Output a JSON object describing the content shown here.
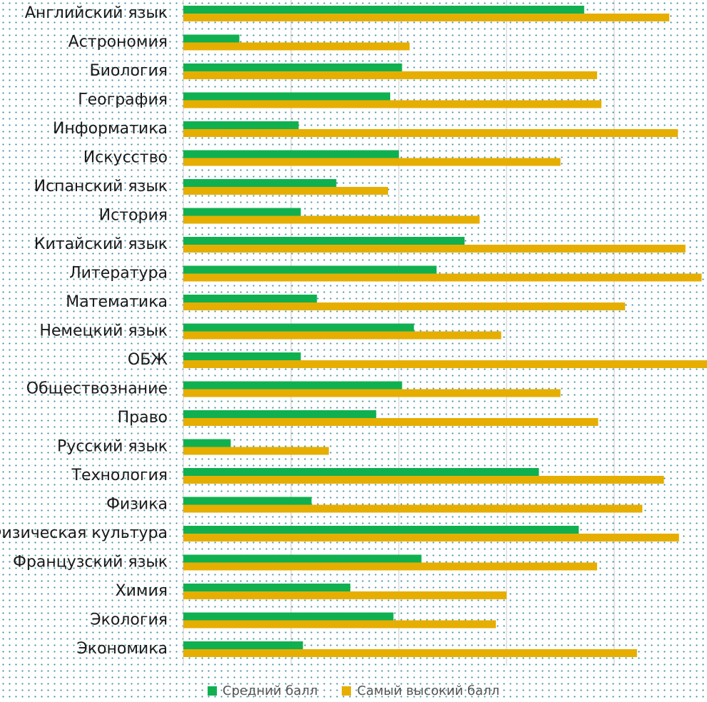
{
  "colors": {
    "average": "#10b050",
    "highest": "#e6ae00",
    "grid": "#c8c8c8"
  },
  "legend": {
    "average_label": "Средний балл",
    "highest_label": "Самый высокий балл"
  },
  "chart_data": {
    "type": "bar",
    "orientation": "horizontal",
    "categories": [
      "Английский язык",
      "Астрономия",
      "Биология",
      "География",
      "Информатика",
      "Искусство",
      "Испанский язык",
      "История",
      "Китайский язык",
      "Литература",
      "Математика",
      "Немецкий язык",
      "ОБЖ",
      "Обществознание",
      "Право",
      "Русский язык",
      "Технология",
      "Физика",
      "Физическая культура",
      "Французский язык",
      "Химия",
      "Экология",
      "Экономика"
    ],
    "series": [
      {
        "name": "Средний балл",
        "values": [
          37.2,
          5.2,
          20.3,
          19.2,
          10.7,
          20.0,
          14.2,
          10.9,
          26.1,
          23.5,
          12.4,
          21.4,
          10.9,
          20.3,
          17.9,
          4.4,
          33.0,
          11.9,
          36.7,
          22.1,
          15.5,
          19.5,
          11.1
        ]
      },
      {
        "name": "Самый высокий балл",
        "values": [
          45.1,
          21.0,
          38.4,
          38.8,
          45.9,
          35.0,
          19.0,
          27.5,
          46.6,
          48.1,
          41.0,
          29.5,
          48.6,
          35.0,
          38.5,
          13.5,
          44.6,
          42.6,
          46.0,
          38.4,
          30.0,
          29.0,
          42.1
        ]
      }
    ],
    "xlim": [
      0,
      48.6
    ],
    "grid": true,
    "legend_position": "bottom"
  }
}
